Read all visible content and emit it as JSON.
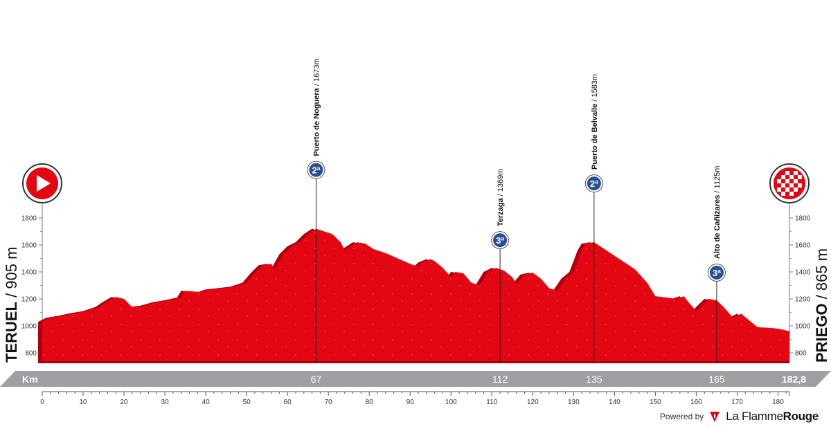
{
  "chart_data": {
    "type": "area",
    "xlabel": "Km",
    "ylim": [
      700,
      1900
    ],
    "xlim": [
      0,
      182.8
    ],
    "y_ticks": [
      "800",
      "1000",
      "1200",
      "1400",
      "1600",
      "1800"
    ],
    "x_ticks": [
      "0",
      "10",
      "20",
      "30",
      "40",
      "50",
      "60",
      "70",
      "80",
      "90",
      "100",
      "110",
      "120",
      "130",
      "140",
      "150",
      "160",
      "170",
      "180"
    ],
    "start": {
      "name": "TERUEL",
      "altitude": "905 m"
    },
    "finish": {
      "name": "PRIEGO",
      "altitude": "865 m"
    },
    "distance_label": "182,8",
    "profile": [
      [
        0,
        1030
      ],
      [
        2,
        1060
      ],
      [
        5,
        1075
      ],
      [
        8,
        1095
      ],
      [
        11,
        1110
      ],
      [
        14,
        1140
      ],
      [
        16,
        1180
      ],
      [
        18,
        1215
      ],
      [
        20,
        1200
      ],
      [
        22,
        1140
      ],
      [
        25,
        1150
      ],
      [
        28,
        1175
      ],
      [
        31,
        1190
      ],
      [
        34,
        1210
      ],
      [
        35,
        1260
      ],
      [
        37,
        1255
      ],
      [
        39,
        1250
      ],
      [
        41,
        1270
      ],
      [
        44,
        1280
      ],
      [
        47,
        1290
      ],
      [
        50,
        1320
      ],
      [
        52,
        1390
      ],
      [
        54,
        1450
      ],
      [
        56,
        1460
      ],
      [
        57,
        1420
      ],
      [
        59,
        1530
      ],
      [
        61,
        1590
      ],
      [
        63,
        1620
      ],
      [
        65,
        1680
      ],
      [
        67,
        1720
      ],
      [
        69,
        1700
      ],
      [
        71,
        1680
      ],
      [
        73,
        1620
      ],
      [
        74,
        1560
      ],
      [
        75,
        1580
      ],
      [
        77,
        1620
      ],
      [
        79,
        1610
      ],
      [
        81,
        1570
      ],
      [
        84,
        1540
      ],
      [
        87,
        1500
      ],
      [
        90,
        1460
      ],
      [
        92,
        1440
      ],
      [
        93,
        1470
      ],
      [
        95,
        1495
      ],
      [
        96,
        1480
      ],
      [
        98,
        1430
      ],
      [
        100,
        1360
      ],
      [
        101,
        1400
      ],
      [
        103,
        1390
      ],
      [
        105,
        1320
      ],
      [
        107,
        1300
      ],
      [
        109,
        1400
      ],
      [
        111,
        1430
      ],
      [
        113,
        1410
      ],
      [
        115,
        1360
      ],
      [
        116,
        1310
      ],
      [
        118,
        1380
      ],
      [
        120,
        1395
      ],
      [
        122,
        1350
      ],
      [
        124,
        1280
      ],
      [
        126,
        1260
      ],
      [
        128,
        1350
      ],
      [
        130,
        1400
      ],
      [
        131,
        1480
      ],
      [
        132,
        1560
      ],
      [
        133,
        1610
      ],
      [
        135,
        1620
      ],
      [
        137,
        1580
      ],
      [
        139,
        1540
      ],
      [
        141,
        1500
      ],
      [
        143,
        1460
      ],
      [
        145,
        1420
      ],
      [
        148,
        1320
      ],
      [
        150,
        1220
      ],
      [
        153,
        1210
      ],
      [
        155,
        1200
      ],
      [
        157,
        1220
      ],
      [
        158,
        1180
      ],
      [
        160,
        1110
      ],
      [
        162,
        1170
      ],
      [
        163,
        1200
      ],
      [
        165,
        1190
      ],
      [
        167,
        1130
      ],
      [
        169,
        1060
      ],
      [
        171,
        1090
      ],
      [
        173,
        1040
      ],
      [
        175,
        990
      ],
      [
        178,
        985
      ],
      [
        180,
        980
      ],
      [
        182.8,
        960
      ]
    ],
    "climbs": [
      {
        "name": "Puerto de Noguera",
        "altitude": "1673m",
        "km": "67",
        "km_value": 67,
        "top": 1720,
        "category": "2ª"
      },
      {
        "name": "Terzaga",
        "altitude": "1369m",
        "km": "112",
        "km_value": 112,
        "top": 1430,
        "category": "3ª"
      },
      {
        "name": "Puerto de Belvalle",
        "altitude": "1583m",
        "km": "135",
        "km_value": 135,
        "top": 1620,
        "category": "2ª"
      },
      {
        "name": "Alto de Cañizares",
        "altitude": "1125m",
        "km": "165",
        "km_value": 165,
        "top": 1190,
        "category": "3ª"
      }
    ],
    "colors": {
      "profile": "#e30613",
      "profile_dark": "#b0000c",
      "band": "#9d9fa2",
      "category_badge": "#2a4e96"
    }
  },
  "credit": {
    "powered_by": "Powered by",
    "brand_light": "La Flamme",
    "brand_bold": "Rouge"
  }
}
